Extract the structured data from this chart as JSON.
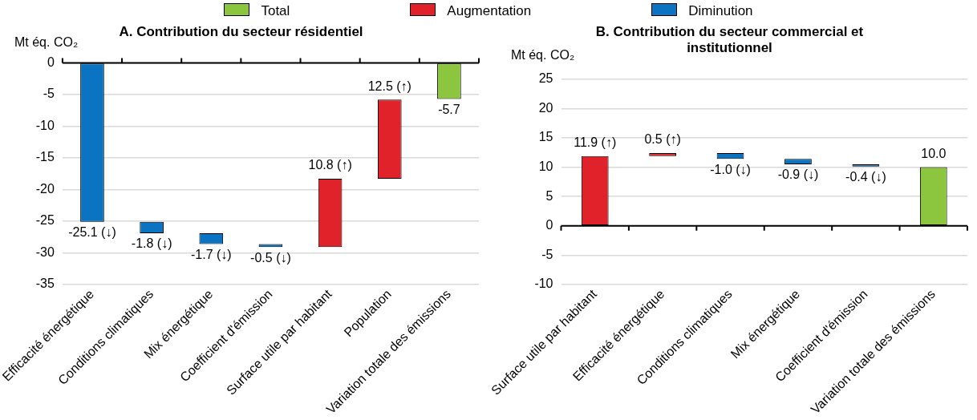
{
  "chart_data": [
    {
      "type": "bar",
      "title": "A. Contribution du secteur résidentiel",
      "ylabel": "Mt éq. CO₂",
      "categories": [
        "Efficacité énergétique",
        "Conditions climatiques",
        "Mix énergétique",
        "Coefficient d'émission",
        "Surface utile par habitant",
        "Population",
        "Variation totale des émissions"
      ],
      "series": [
        {
          "name": "Total",
          "color": "#8cc63f",
          "values": [
            null,
            null,
            null,
            null,
            null,
            null,
            -5.7
          ],
          "base": [
            null,
            null,
            null,
            null,
            null,
            null,
            0
          ]
        },
        {
          "name": "Augmentation",
          "color": "#e0232b",
          "values": [
            null,
            null,
            null,
            null,
            10.8,
            12.5,
            null
          ],
          "base": [
            null,
            null,
            null,
            null,
            -29.1,
            -18.3,
            null
          ]
        },
        {
          "name": "Diminution",
          "color": "#0a74c2",
          "values": [
            -25.1,
            -1.8,
            -1.7,
            -0.5,
            null,
            null,
            null
          ],
          "base": [
            0,
            -25.1,
            -26.9,
            -28.6,
            null,
            null,
            null
          ]
        }
      ],
      "value_labels": [
        "-25.1 (↓)",
        "-1.8 (↓)",
        "-1.7 (↓)",
        "-0.5 (↓)",
        "10.8 (↑)",
        "12.5 (↑)",
        "-5.7"
      ],
      "ylim": [
        -35,
        0
      ],
      "yticks": [
        -35,
        -30,
        -25,
        -20,
        -15,
        -10,
        -5,
        0
      ],
      "grid": "y",
      "legend": "top"
    },
    {
      "type": "bar",
      "title": "B. Contribution du secteur commercial et institutionnel",
      "ylabel": "Mt éq. CO₂",
      "categories": [
        "Surface utile par habitant",
        "Efficacité énergétique",
        "Conditions climatiques",
        "Mix énergétique",
        "Coefficient d'émission",
        "Variation totale des émissions"
      ],
      "series": [
        {
          "color": "#8cc63f",
          "values": [
            null,
            null,
            null,
            null,
            null,
            10.0
          ],
          "base": [
            null,
            null,
            null,
            null,
            null,
            0
          ]
        },
        {
          "color": "#e0232b",
          "values": [
            11.9,
            0.5,
            null,
            null,
            null,
            null
          ],
          "base": [
            0,
            11.9,
            null,
            null,
            null,
            null
          ]
        },
        {
          "color": "#0a74c2",
          "values": [
            null,
            null,
            -1.0,
            -0.9,
            -0.4,
            null
          ],
          "base": [
            null,
            null,
            12.4,
            11.4,
            10.5,
            null
          ]
        }
      ],
      "value_labels": [
        "11.9 (↑)",
        "0.5 (↑)",
        "-1.0 (↓)",
        "-0.9 (↓)",
        "-0.4 (↓)",
        "10.0"
      ],
      "ylim": [
        -10,
        25
      ],
      "yticks": [
        -10,
        -5,
        0,
        5,
        10,
        15,
        20,
        25
      ],
      "grid": "y"
    }
  ]
}
